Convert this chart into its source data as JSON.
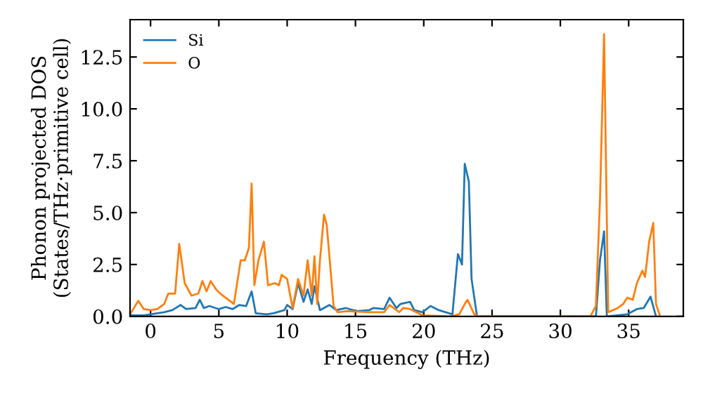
{
  "chart_data": {
    "type": "line",
    "xlabel": "Frequency (THz)",
    "ylabel": "Phonon projected DOS\n(States/THz·primitive cell)",
    "xlim": [
      -1.5,
      39
    ],
    "ylim": [
      0,
      14.3
    ],
    "xticks": [
      0,
      5,
      10,
      15,
      20,
      25,
      30,
      35
    ],
    "yticks": [
      {
        "value": 0,
        "label": "0.0"
      },
      {
        "value": 2.5,
        "label": "2.5"
      },
      {
        "value": 5,
        "label": "5.0"
      },
      {
        "value": 7.5,
        "label": "7.5"
      },
      {
        "value": 10,
        "label": "10.0"
      },
      {
        "value": 12.5,
        "label": "12.5"
      }
    ],
    "grid": false,
    "legend": "top left",
    "marker": "none",
    "line_style": "solid",
    "series": [
      {
        "name": "Si",
        "color": "#1f77b4",
        "x": [
          -1.5,
          -0.5,
          1,
          1.6,
          2.2,
          2.6,
          3.3,
          3.6,
          3.9,
          4.3,
          5,
          5.5,
          6,
          6.5,
          7,
          7.4,
          7.7,
          8.5,
          9,
          9.8,
          10,
          10.4,
          10.8,
          11.2,
          11.5,
          11.8,
          12,
          12.4,
          13.1,
          13.6,
          14.3,
          15.1,
          16,
          16.3,
          17.1,
          17.5,
          18,
          18.3,
          19,
          19.3,
          19.9,
          20.5,
          21.1,
          22.1,
          22.5,
          22.8,
          23.0,
          23.3,
          23.5,
          23.9,
          32.6,
          32.9,
          33.2,
          33.4,
          34.9,
          35.6,
          36.1,
          36.6,
          37
        ],
        "values": [
          0.05,
          0.05,
          0.2,
          0.3,
          0.55,
          0.35,
          0.4,
          0.8,
          0.4,
          0.5,
          0.35,
          0.45,
          0.35,
          0.55,
          0.5,
          1.2,
          0.15,
          0.1,
          0.15,
          0.3,
          0.55,
          0.35,
          1.6,
          0.7,
          1.3,
          0.6,
          1.45,
          0.3,
          0.55,
          0.3,
          0.4,
          0.25,
          0.3,
          0.4,
          0.35,
          0.9,
          0.4,
          0.6,
          0.7,
          0.3,
          0.2,
          0.5,
          0.3,
          0.1,
          3.0,
          2.5,
          7.35,
          6.5,
          1.8,
          0,
          0,
          2.7,
          4.1,
          0,
          0.1,
          0.35,
          0.4,
          0.95,
          0
        ]
      },
      {
        "name": "O",
        "color": "#ff7f0e",
        "x": [
          -1.5,
          -0.9,
          -0.5,
          0,
          0.5,
          1,
          1.3,
          1.8,
          2.1,
          2.5,
          3,
          3.5,
          3.8,
          4.1,
          4.4,
          4.8,
          5.1,
          6.1,
          6.6,
          6.9,
          7.2,
          7.4,
          7.6,
          7.9,
          8.3,
          8.6,
          9.1,
          9.4,
          9.6,
          10,
          10.4,
          10.8,
          11.2,
          11.5,
          11.8,
          12.0,
          12.2,
          12.4,
          12.7,
          12.9,
          13.4,
          13.7,
          14.4,
          16.1,
          17.1,
          17.5,
          18.2,
          18.5,
          19,
          19.9,
          22,
          22.6,
          23,
          23.2,
          23.7,
          24,
          32.2,
          32.6,
          32.9,
          33.2,
          33.5,
          34.2,
          34.6,
          34.9,
          35.3,
          35.6,
          36,
          36.2,
          36.5,
          36.8,
          37,
          37.3
        ],
        "values": [
          0.1,
          0.75,
          0.35,
          0.3,
          0.35,
          0.6,
          1.1,
          1.1,
          3.5,
          1.6,
          1.0,
          1.1,
          1.7,
          1.2,
          1.7,
          1.3,
          1.1,
          0.6,
          2.7,
          2.7,
          3.3,
          6.4,
          1.5,
          2.7,
          3.6,
          1.5,
          1.6,
          1.5,
          2.0,
          1.8,
          0.4,
          1.8,
          1.0,
          2.7,
          1.0,
          2.9,
          0.6,
          2.7,
          4.9,
          4.4,
          0.5,
          0.2,
          0.25,
          0.2,
          0.2,
          0.55,
          0.2,
          0.4,
          0.35,
          0.05,
          0,
          0.1,
          0.6,
          0.8,
          0.1,
          0,
          0,
          0.5,
          5.6,
          13.6,
          0.2,
          0.4,
          0.6,
          0.9,
          0.8,
          1.6,
          2.2,
          1.9,
          3.6,
          4.5,
          0.6,
          0
        ]
      }
    ]
  }
}
